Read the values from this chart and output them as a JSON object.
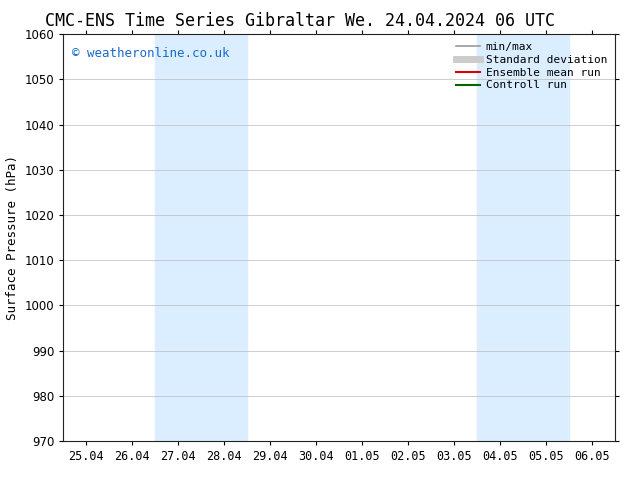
{
  "title_left": "CMC-ENS Time Series Gibraltar",
  "title_right": "We. 24.04.2024 06 UTC",
  "ylabel": "Surface Pressure (hPa)",
  "ylim": [
    970,
    1060
  ],
  "yticks": [
    970,
    980,
    990,
    1000,
    1010,
    1020,
    1030,
    1040,
    1050,
    1060
  ],
  "xtick_labels": [
    "25.04",
    "26.04",
    "27.04",
    "28.04",
    "29.04",
    "30.04",
    "01.05",
    "02.05",
    "03.05",
    "04.05",
    "05.05",
    "06.05"
  ],
  "num_xticks": 12,
  "xlim_start": 0,
  "xlim_end": 11,
  "shaded_regions": [
    {
      "x_start": 2.0,
      "x_end": 4.0,
      "color": "#daeeff"
    },
    {
      "x_start": 9.0,
      "x_end": 11.0,
      "color": "#daeeff"
    }
  ],
  "watermark_text": "© weatheronline.co.uk",
  "watermark_color": "#1a6bc9",
  "background_color": "#ffffff",
  "legend_items": [
    {
      "label": "min/max",
      "color": "#999999",
      "lw": 1.2,
      "style": "solid"
    },
    {
      "label": "Standard deviation",
      "color": "#cccccc",
      "lw": 5,
      "style": "solid"
    },
    {
      "label": "Ensemble mean run",
      "color": "#dd0000",
      "lw": 1.5,
      "style": "solid"
    },
    {
      "label": "Controll run",
      "color": "#006600",
      "lw": 1.5,
      "style": "solid"
    }
  ],
  "title_fontsize": 12,
  "tick_fontsize": 8.5,
  "ylabel_fontsize": 9,
  "watermark_fontsize": 9,
  "legend_fontsize": 8
}
